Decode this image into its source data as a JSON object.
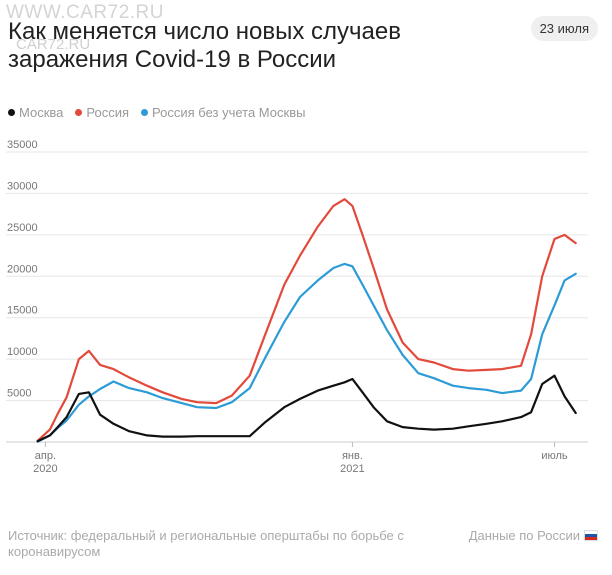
{
  "watermark": {
    "primary": "WWW.CAR72.RU",
    "secondary": "CAR72.RU"
  },
  "header": {
    "title": "Как меняется число новых случаев заражения Covid-19 в России",
    "date_badge": "23 июля"
  },
  "footer": {
    "source": "Источник: федеральный и региональные оперштабы по борьбе с коронавирусом",
    "link_label": "Данные по России",
    "flag_icon": "russia-flag-icon"
  },
  "colors": {
    "moscow": "#111111",
    "russia": "#e24a3b",
    "russia_ex_moscow": "#2d9bd6",
    "grid": "#e6e6e6",
    "axis_text": "#777777"
  },
  "chart_data": {
    "type": "line",
    "title": "Как меняется число новых случаев заражения Covid-19 в России",
    "xlabel": "",
    "ylabel": "",
    "ylim": [
      0,
      35000
    ],
    "y_ticks": [
      "35000",
      "30000",
      "25000",
      "20000",
      "15000",
      "10000",
      "5000"
    ],
    "x_ticks": [
      {
        "date": "2020-04-01",
        "line1": "апр.",
        "line2": "2020"
      },
      {
        "date": "2021-01-01",
        "line1": "янв.",
        "line2": "2021"
      },
      {
        "date": "2021-07-01",
        "line1": "июль",
        "line2": ""
      }
    ],
    "grid": true,
    "legend_position": "top-left",
    "x": [
      "2020-03-25",
      "2020-04-05",
      "2020-04-12",
      "2020-04-20",
      "2020-05-01",
      "2020-05-10",
      "2020-05-20",
      "2020-06-01",
      "2020-06-15",
      "2020-07-01",
      "2020-07-15",
      "2020-08-01",
      "2020-08-15",
      "2020-09-01",
      "2020-09-15",
      "2020-10-01",
      "2020-10-15",
      "2020-11-01",
      "2020-11-15",
      "2020-12-01",
      "2020-12-15",
      "2020-12-25",
      "2021-01-01",
      "2021-01-10",
      "2021-01-20",
      "2021-02-01",
      "2021-02-15",
      "2021-03-01",
      "2021-03-15",
      "2021-04-01",
      "2021-04-15",
      "2021-05-01",
      "2021-05-15",
      "2021-06-01",
      "2021-06-10",
      "2021-06-20",
      "2021-07-01",
      "2021-07-10",
      "2021-07-20"
    ],
    "series": [
      {
        "name": "Москва",
        "color": "#111111",
        "values": [
          100,
          800,
          1800,
          3000,
          5800,
          6000,
          3300,
          2200,
          1300,
          800,
          650,
          650,
          700,
          700,
          700,
          700,
          2400,
          4200,
          5200,
          6200,
          6800,
          7200,
          7600,
          6000,
          4200,
          2500,
          1800,
          1600,
          1500,
          1600,
          1900,
          2200,
          2500,
          3000,
          3600,
          7000,
          8000,
          5500,
          3500
        ]
      },
      {
        "name": "Россия",
        "color": "#e24a3b",
        "values": [
          150,
          1500,
          3400,
          5400,
          10000,
          11000,
          9300,
          8800,
          7800,
          6800,
          6000,
          5200,
          4800,
          4700,
          5600,
          8000,
          13000,
          19000,
          22500,
          26000,
          28500,
          29300,
          28500,
          25000,
          21000,
          16000,
          12000,
          10000,
          9600,
          8800,
          8600,
          8700,
          8800,
          9200,
          13000,
          20000,
          24500,
          25000,
          24000
        ]
      },
      {
        "name": "Россия без учета Москвы",
        "color": "#2d9bd6",
        "values": [
          50,
          800,
          1700,
          2600,
          4500,
          5500,
          6400,
          7300,
          6500,
          6000,
          5300,
          4700,
          4200,
          4100,
          4800,
          6500,
          10200,
          14500,
          17500,
          19500,
          21000,
          21500,
          21200,
          19000,
          16500,
          13500,
          10500,
          8300,
          7700,
          6800,
          6500,
          6300,
          5900,
          6200,
          7600,
          13000,
          16500,
          19500,
          20300
        ]
      }
    ]
  }
}
